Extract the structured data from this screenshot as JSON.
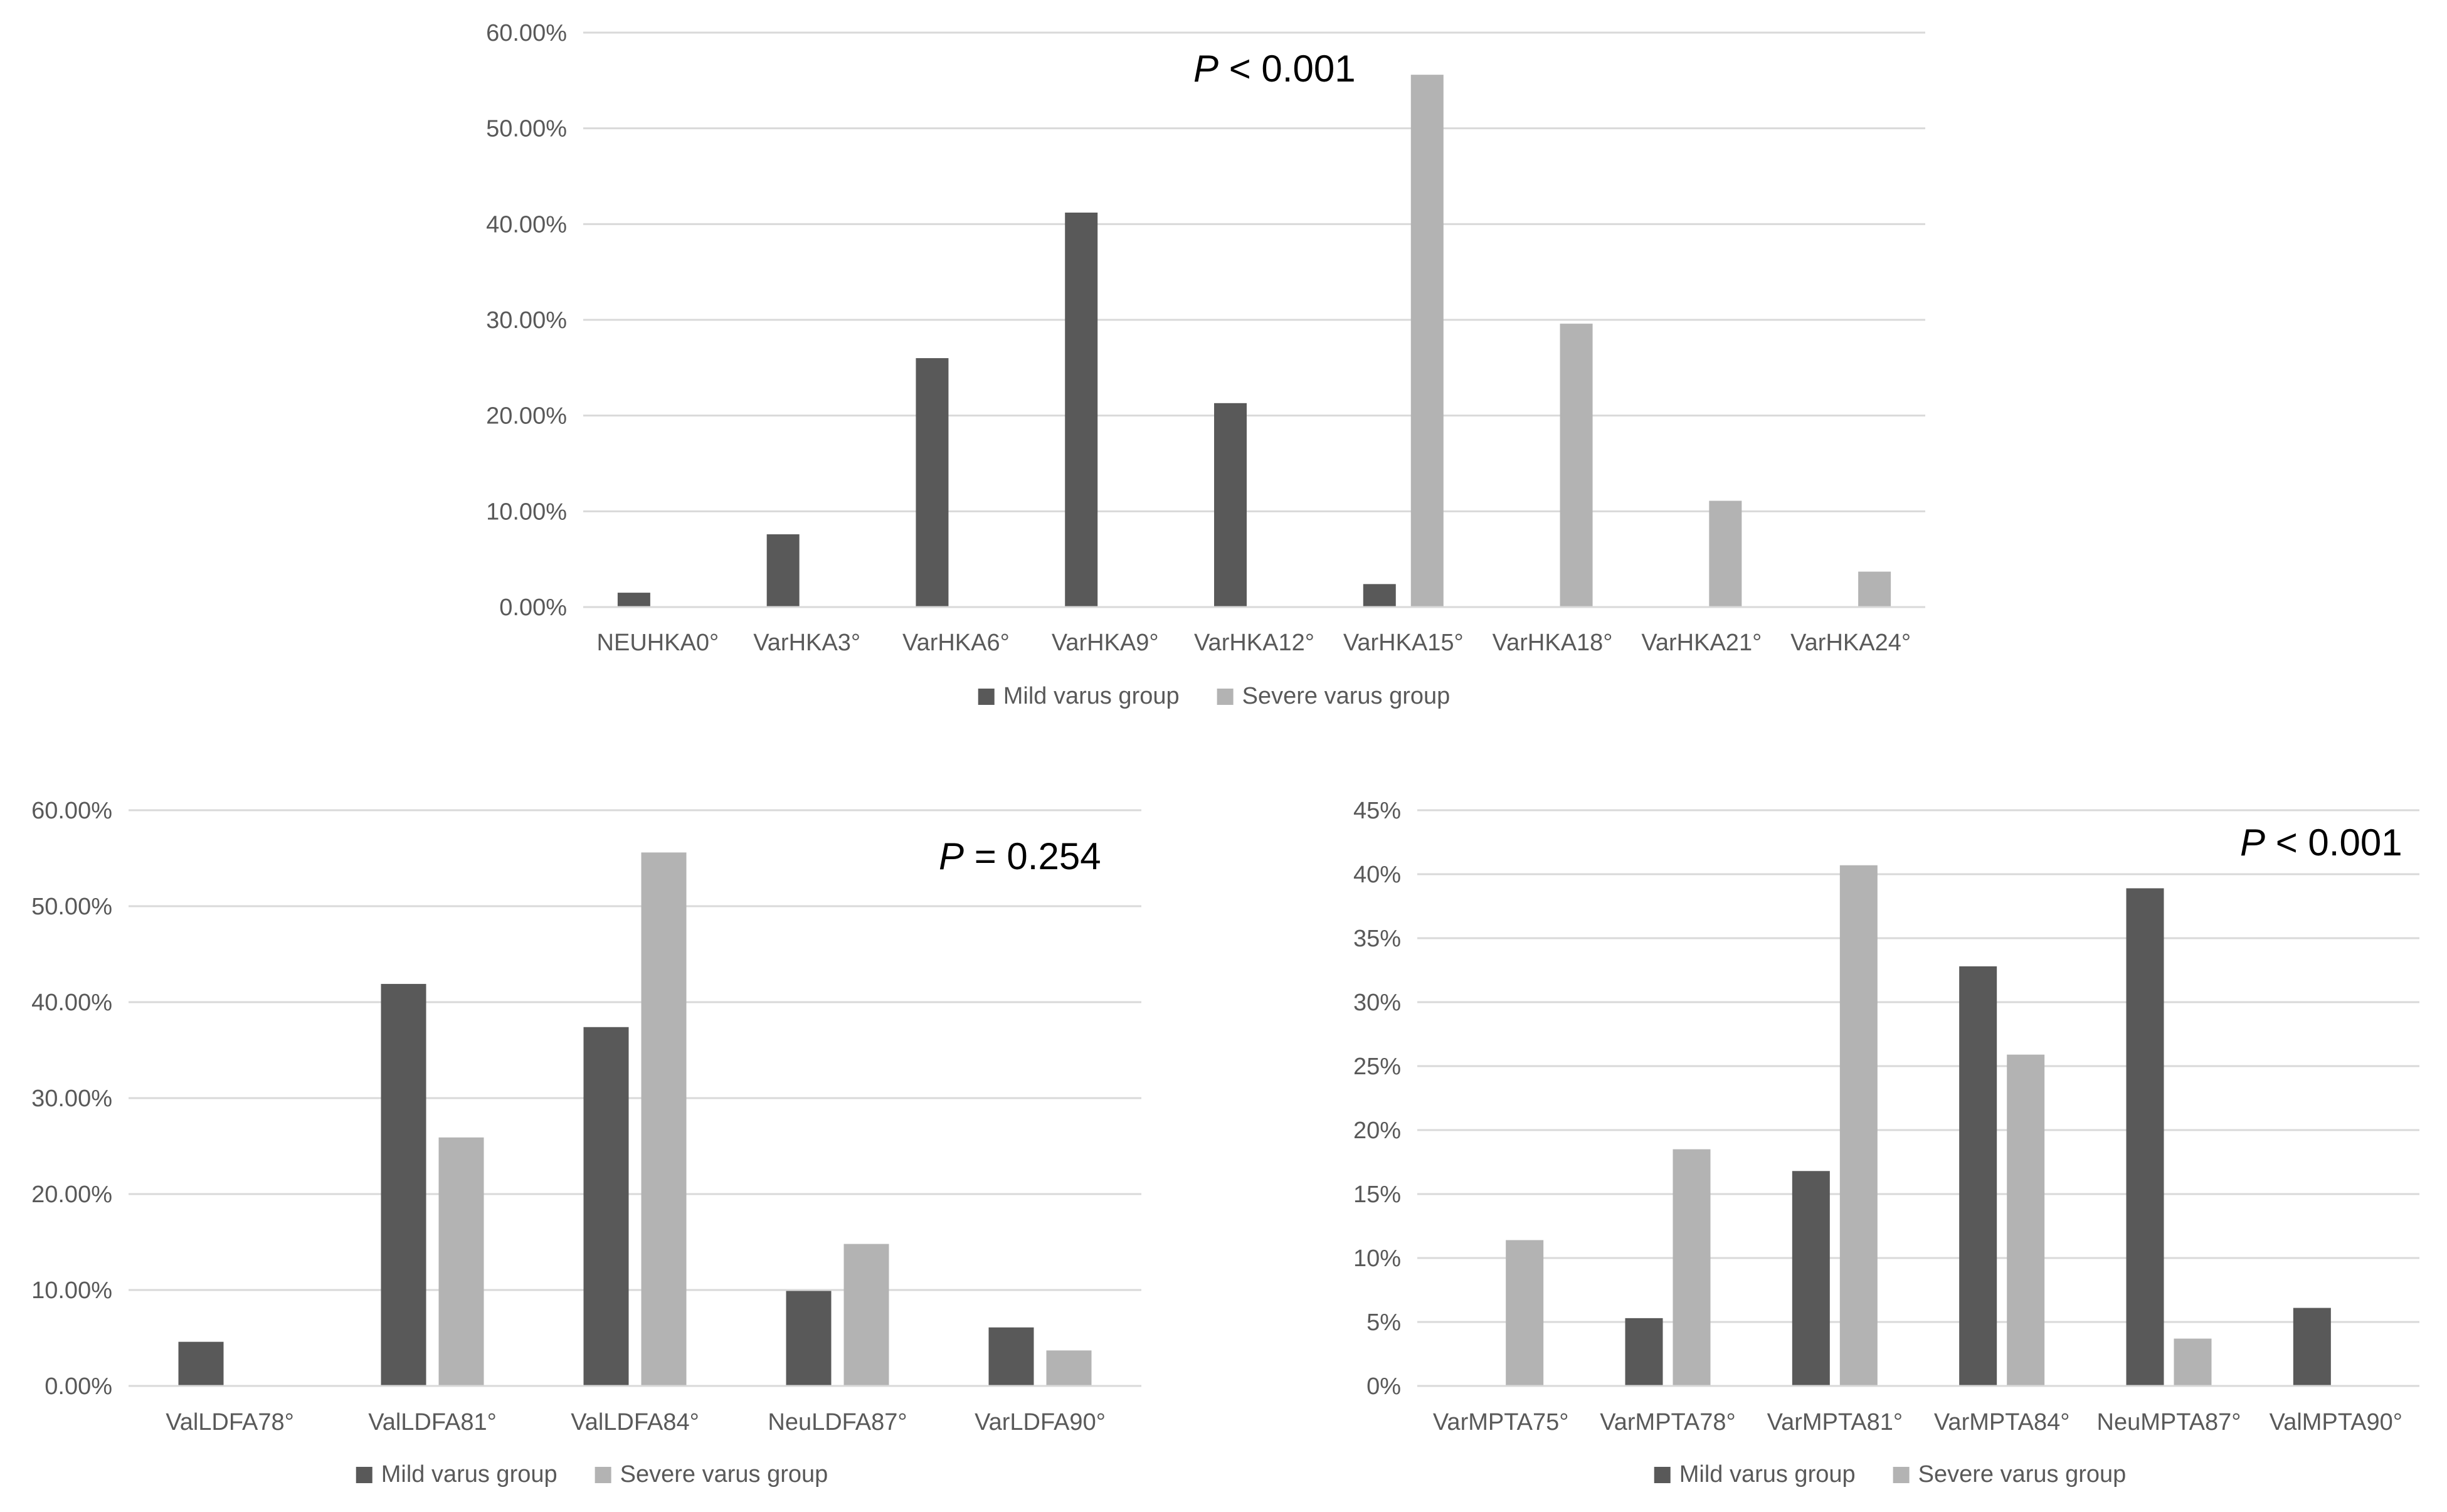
{
  "colors": {
    "mild": "#595959",
    "severe": "#b3b3b3",
    "grid": "#d9d9d9",
    "axis_text": "#595959",
    "pval_text": "#000000"
  },
  "chart_data": [
    {
      "type": "bar",
      "pval": {
        "italic": "P",
        "rest": " < 0.001"
      },
      "categories": [
        "NEUHKA0°",
        "VarHKA3°",
        "VarHKA6°",
        "VarHKA9°",
        "VarHKA12°",
        "VarHKA15°",
        "VarHKA18°",
        "VarHKA21°",
        "VarHKA24°"
      ],
      "series": [
        {
          "name": "Mild varus group",
          "values": [
            1.5,
            7.6,
            26.0,
            41.2,
            21.3,
            2.4,
            0,
            0,
            0
          ]
        },
        {
          "name": "Severe varus group",
          "values": [
            0,
            0,
            0,
            0,
            0,
            55.6,
            29.6,
            11.1,
            3.7
          ]
        }
      ],
      "ylim": [
        0,
        60
      ],
      "yticks": [
        "0.00%",
        "10.00%",
        "20.00%",
        "30.00%",
        "40.00%",
        "50.00%",
        "60.00%"
      ],
      "grid": true,
      "legend": "bottom"
    },
    {
      "type": "bar",
      "pval": {
        "italic": "P",
        "rest": " = 0.254"
      },
      "categories": [
        "ValLDFA78°",
        "ValLDFA81°",
        "ValLDFA84°",
        "NeuLDFA87°",
        "VarLDFA90°"
      ],
      "series": [
        {
          "name": "Mild varus group",
          "values": [
            4.6,
            41.9,
            37.4,
            9.9,
            6.1
          ]
        },
        {
          "name": "Severe varus group",
          "values": [
            0,
            25.9,
            55.6,
            14.8,
            3.7
          ]
        }
      ],
      "ylim": [
        0,
        60
      ],
      "yticks": [
        "0.00%",
        "10.00%",
        "20.00%",
        "30.00%",
        "40.00%",
        "50.00%",
        "60.00%"
      ],
      "grid": true,
      "legend": "bottom"
    },
    {
      "type": "bar",
      "pval": {
        "italic": "P",
        "rest": " < 0.001"
      },
      "categories": [
        "VarMPTA75°",
        "VarMPTA78°",
        "VarMPTA81°",
        "VarMPTA84°",
        "NeuMPTA87°",
        "ValMPTA90°"
      ],
      "series": [
        {
          "name": "Mild varus group",
          "values": [
            0,
            5.3,
            16.8,
            32.8,
            38.9,
            6.1
          ]
        },
        {
          "name": "Severe varus group",
          "values": [
            11.4,
            18.5,
            40.7,
            25.9,
            3.7,
            0
          ]
        }
      ],
      "ylim": [
        0,
        45
      ],
      "yticks": [
        "0%",
        "5%",
        "10%",
        "15%",
        "20%",
        "25%",
        "30%",
        "35%",
        "40%",
        "45%"
      ],
      "grid": true,
      "legend": "bottom"
    }
  ]
}
